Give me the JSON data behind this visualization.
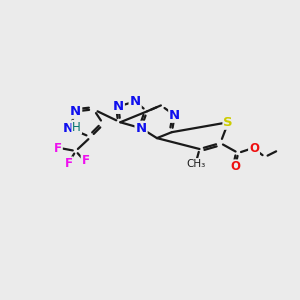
{
  "bg_color": "#ebebeb",
  "bond_color": "#1a1a1a",
  "bond_lw": 1.6,
  "dbl_sep": 2.2,
  "atom_colors": {
    "N": "#1010ee",
    "S": "#cccc00",
    "O": "#ee1010",
    "F": "#ee10ee",
    "H": "#007070",
    "C": "#1a1a1a"
  },
  "figsize": [
    3.0,
    3.0
  ],
  "dpi": 100
}
